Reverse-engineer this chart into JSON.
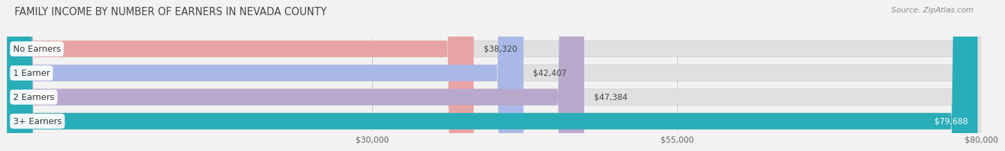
{
  "title": "FAMILY INCOME BY NUMBER OF EARNERS IN NEVADA COUNTY",
  "source": "Source: ZipAtlas.com",
  "categories": [
    "No Earners",
    "1 Earner",
    "2 Earners",
    "3+ Earners"
  ],
  "values": [
    38320,
    42407,
    47384,
    79688
  ],
  "bar_colors": [
    "#e8a4a4",
    "#aab8e8",
    "#b8a8cc",
    "#29adb8"
  ],
  "value_labels": [
    "$38,320",
    "$42,407",
    "$47,384",
    "$79,688"
  ],
  "x_max": 80000,
  "x_ticks": [
    30000,
    55000,
    80000
  ],
  "x_tick_labels": [
    "$30,000",
    "$55,000",
    "$80,000"
  ],
  "background_color": "#f2f2f2",
  "bar_bg_color": "#e0e0e0",
  "title_fontsize": 10.5,
  "source_fontsize": 8,
  "label_fontsize": 9,
  "value_fontsize": 8.5,
  "tick_fontsize": 8.5,
  "bar_height": 0.68,
  "bar_gap": 0.32
}
